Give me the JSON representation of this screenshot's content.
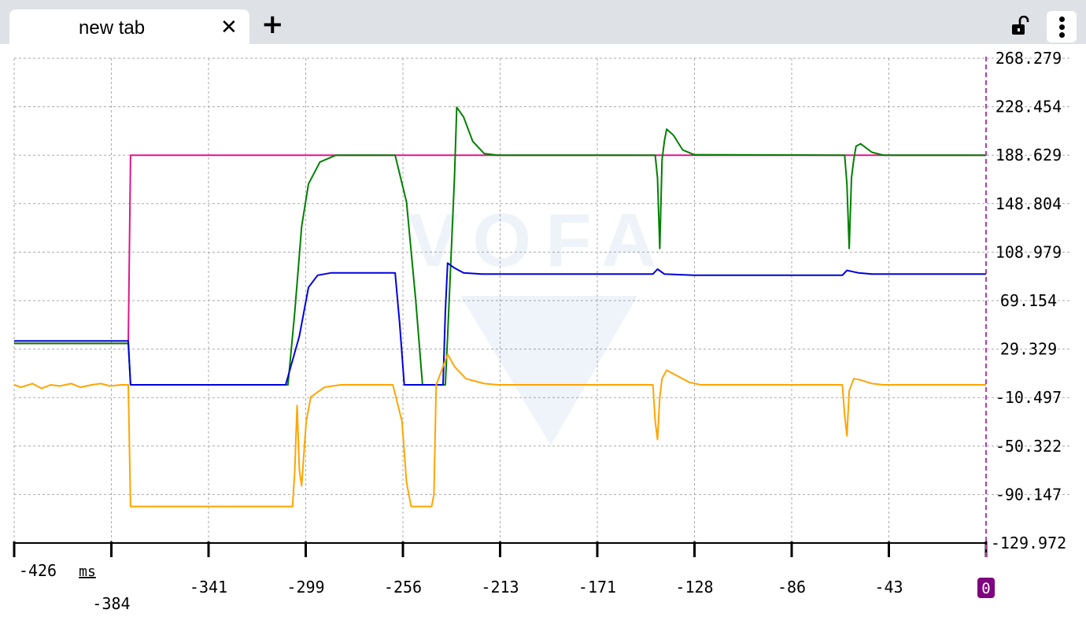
{
  "browser": {
    "tab_title": "new tab",
    "close_glyph": "✕",
    "new_tab_glyph": "+",
    "lock_icon": "unlocked-padlock-icon",
    "menu_icon": "vertical-dots-menu-icon"
  },
  "chart_data": {
    "type": "line",
    "watermark": "VOFA",
    "x_unit": "ms",
    "xlim": [
      -426,
      0
    ],
    "ylim": [
      -129.972,
      268.279
    ],
    "x_ticks": [
      "-426",
      "-384",
      "-341",
      "-299",
      "-256",
      "-213",
      "-171",
      "-128",
      "-86",
      "-43",
      "0"
    ],
    "y_ticks": [
      "268.279",
      "228.454",
      "188.629",
      "148.804",
      "108.979",
      "69.154",
      "29.329",
      "-10.497",
      "-50.322",
      "-90.147",
      "-129.972"
    ],
    "grid": true,
    "colors": {
      "grid": "#aaaaaa",
      "cursor": "#b03cb0",
      "zero_badge": "#800080"
    },
    "series": [
      {
        "color": "#e0158a",
        "points": [
          [
            -426,
            34
          ],
          [
            -376,
            34
          ],
          [
            -375,
            188.6
          ],
          [
            0,
            188.6
          ]
        ]
      },
      {
        "color": "#008000",
        "points": [
          [
            -426,
            34
          ],
          [
            -376,
            34
          ],
          [
            -375,
            0
          ],
          [
            -306,
            0
          ],
          [
            -303,
            60
          ],
          [
            -300,
            130
          ],
          [
            -297,
            165
          ],
          [
            -292,
            183
          ],
          [
            -285,
            188.6
          ],
          [
            -259,
            188.6
          ],
          [
            -254,
            150
          ],
          [
            -250,
            70
          ],
          [
            -247,
            0
          ],
          [
            -237,
            0
          ],
          [
            -236,
            40
          ],
          [
            -233,
            170
          ],
          [
            -232,
            228
          ],
          [
            -229,
            220
          ],
          [
            -225,
            200
          ],
          [
            -220,
            190
          ],
          [
            -214,
            188.6
          ],
          [
            -145,
            188.6
          ],
          [
            -144,
            170
          ],
          [
            -143,
            112
          ],
          [
            -142,
            185
          ],
          [
            -141,
            200
          ],
          [
            -140,
            210
          ],
          [
            -137,
            205
          ],
          [
            -133,
            193
          ],
          [
            -128,
            189
          ],
          [
            -62,
            188.6
          ],
          [
            -61,
            165
          ],
          [
            -60,
            112
          ],
          [
            -59,
            170
          ],
          [
            -58,
            185
          ],
          [
            -57,
            196
          ],
          [
            -55,
            198
          ],
          [
            -50,
            191
          ],
          [
            -45,
            188.6
          ],
          [
            0,
            188.6
          ]
        ]
      },
      {
        "color": "#0000e0",
        "points": [
          [
            -426,
            36
          ],
          [
            -376,
            36
          ],
          [
            -375,
            0
          ],
          [
            -307,
            0
          ],
          [
            -301,
            40
          ],
          [
            -297,
            80
          ],
          [
            -293,
            90
          ],
          [
            -287,
            92
          ],
          [
            -259,
            92
          ],
          [
            -257,
            50
          ],
          [
            -255,
            0
          ],
          [
            -238,
            0
          ],
          [
            -237,
            60
          ],
          [
            -236,
            100
          ],
          [
            -233,
            96
          ],
          [
            -229,
            92
          ],
          [
            -221,
            91
          ],
          [
            -146,
            91
          ],
          [
            -144,
            95
          ],
          [
            -141,
            91
          ],
          [
            -128,
            90
          ],
          [
            -63,
            90
          ],
          [
            -61,
            94
          ],
          [
            -56,
            92
          ],
          [
            -50,
            91
          ],
          [
            0,
            91
          ]
        ]
      },
      {
        "color": "#ffa500",
        "points": [
          [
            -426,
            0
          ],
          [
            -423,
            -2
          ],
          [
            -418,
            1
          ],
          [
            -414,
            -3
          ],
          [
            -410,
            0
          ],
          [
            -406,
            -1
          ],
          [
            -401,
            1
          ],
          [
            -397,
            -2
          ],
          [
            -392,
            0
          ],
          [
            -388,
            1
          ],
          [
            -384,
            -1
          ],
          [
            -379,
            0
          ],
          [
            -376,
            0
          ],
          [
            -375,
            -100
          ],
          [
            -304,
            -100
          ],
          [
            -303,
            -70
          ],
          [
            -302,
            -17
          ],
          [
            -301,
            -70
          ],
          [
            -300,
            -83
          ],
          [
            -298,
            -30
          ],
          [
            -296,
            -10
          ],
          [
            -290,
            -2
          ],
          [
            -283,
            0
          ],
          [
            -260,
            0
          ],
          [
            -256,
            -30
          ],
          [
            -254,
            -80
          ],
          [
            -252,
            -100
          ],
          [
            -243,
            -100
          ],
          [
            -242,
            -90
          ],
          [
            -241,
            0
          ],
          [
            -238,
            15
          ],
          [
            -236,
            25
          ],
          [
            -233,
            15
          ],
          [
            -228,
            5
          ],
          [
            -220,
            1
          ],
          [
            -214,
            0
          ],
          [
            -146,
            0
          ],
          [
            -145,
            -30
          ],
          [
            -144,
            -45
          ],
          [
            -143,
            -10
          ],
          [
            -142,
            5
          ],
          [
            -140,
            12
          ],
          [
            -136,
            8
          ],
          [
            -130,
            2
          ],
          [
            -125,
            0
          ],
          [
            -63,
            0
          ],
          [
            -62,
            -25
          ],
          [
            -61,
            -42
          ],
          [
            -60,
            -5
          ],
          [
            -58,
            5
          ],
          [
            -55,
            4
          ],
          [
            -50,
            1
          ],
          [
            -45,
            0
          ],
          [
            0,
            0
          ]
        ]
      }
    ]
  }
}
